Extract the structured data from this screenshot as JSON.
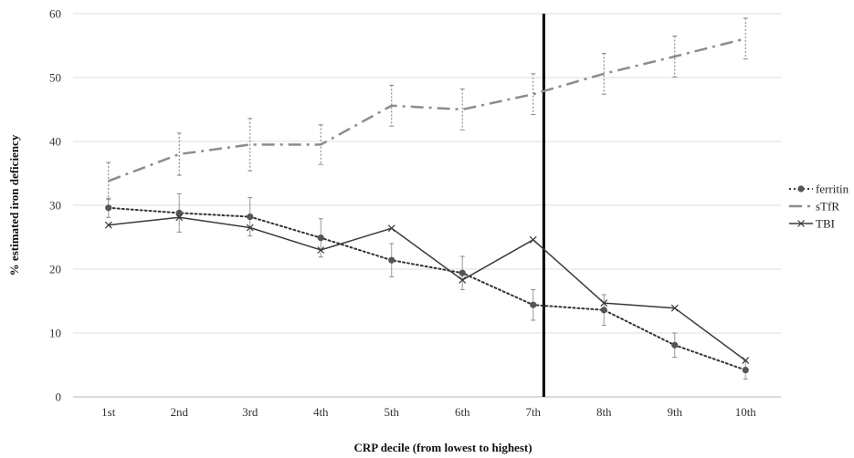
{
  "chart_data": {
    "type": "line",
    "xlabel": "CRP decile (from lowest to highest)",
    "ylabel": "% estimated iron deficiency",
    "categories": [
      "1st",
      "2nd",
      "3rd",
      "4th",
      "5th",
      "6th",
      "7th",
      "8th",
      "9th",
      "10th"
    ],
    "ylim": [
      0,
      60
    ],
    "yticks": [
      0,
      10,
      20,
      30,
      40,
      50,
      60
    ],
    "grid": true,
    "legend_position": "right",
    "vertical_marker": {
      "between_categories": [
        "6th",
        "7th"
      ],
      "position": 6.65,
      "color": "#000000"
    },
    "series": [
      {
        "name": "ferritin",
        "style": "dotted-circle-markers",
        "color": "#333333",
        "values": [
          29.6,
          28.8,
          28.2,
          24.9,
          21.4,
          19.4,
          14.4,
          13.6,
          8.1,
          4.2
        ],
        "error": [
          1.5,
          3.0,
          3.0,
          3.0,
          2.6,
          2.6,
          2.4,
          2.4,
          1.9,
          1.4
        ]
      },
      {
        "name": "sTfR",
        "style": "dash-dot",
        "color": "#8c8c8c",
        "values": [
          33.8,
          38.0,
          39.5,
          39.5,
          45.6,
          45.0,
          47.4,
          50.6,
          53.3,
          56.1
        ],
        "error": [
          2.9,
          3.3,
          4.1,
          3.1,
          3.2,
          3.2,
          3.2,
          3.2,
          3.2,
          3.2
        ]
      },
      {
        "name": "TBI",
        "style": "solid-x-markers",
        "color": "#3a3a3a",
        "values": [
          26.9,
          28.1,
          26.5,
          23.0,
          26.4,
          18.3,
          24.6,
          14.7,
          13.9,
          5.7
        ],
        "error": []
      }
    ]
  }
}
